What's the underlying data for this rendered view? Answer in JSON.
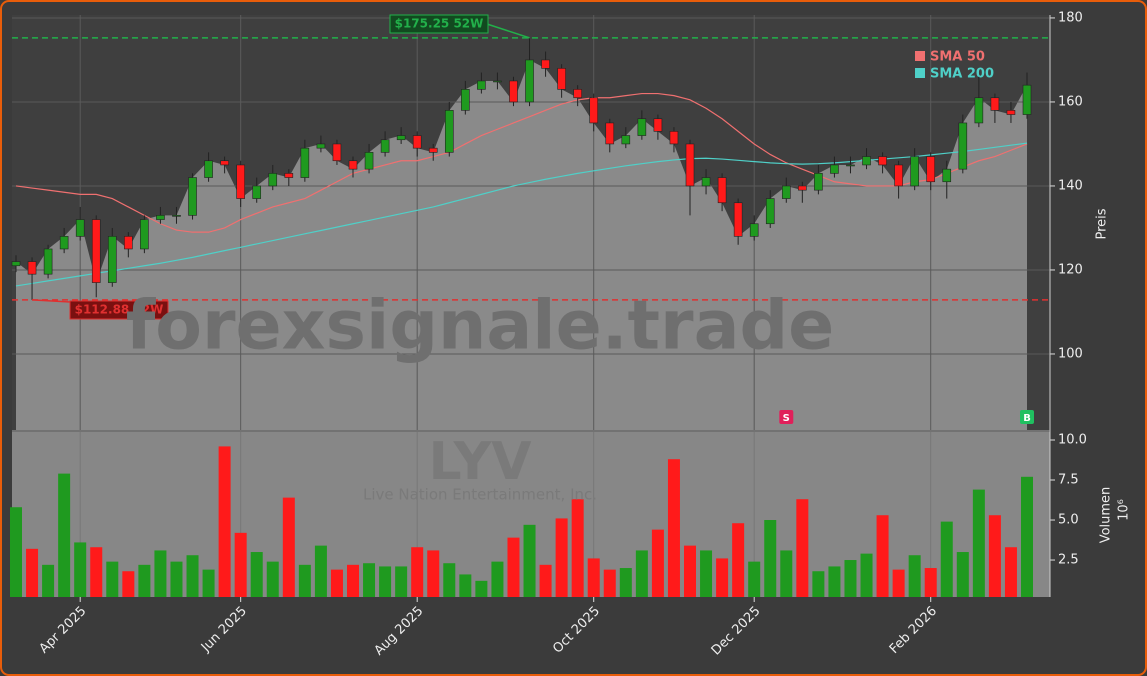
{
  "chart_data": {
    "type": "candlestick",
    "watermark": "forexsignale.trade",
    "symbol": "LYV",
    "company": "Live Nation Entertainment, Inc.",
    "categories": [
      null,
      null,
      null,
      null,
      "Apr 2025",
      null,
      null,
      null,
      null,
      null,
      null,
      null,
      null,
      null,
      "Jun 2025",
      null,
      null,
      null,
      null,
      null,
      null,
      null,
      null,
      null,
      null,
      "Aug 2025",
      null,
      null,
      null,
      null,
      null,
      null,
      null,
      null,
      null,
      null,
      "Oct 2025",
      null,
      null,
      null,
      null,
      null,
      null,
      null,
      null,
      null,
      "Dec 2025",
      null,
      null,
      null,
      null,
      null,
      null,
      null,
      null,
      null,
      null,
      "Feb 2026",
      null,
      null,
      null,
      null,
      null,
      null
    ],
    "open": [
      121,
      122,
      119,
      125,
      128,
      132,
      117,
      128,
      125,
      132,
      133,
      133,
      142,
      146,
      145,
      137,
      140,
      143,
      142,
      149,
      150,
      146,
      144,
      148,
      151,
      152,
      149,
      148,
      158,
      163,
      165,
      165,
      160,
      170,
      168,
      163,
      161,
      155,
      150,
      152,
      156,
      153,
      150,
      140,
      142,
      136,
      128,
      131,
      137,
      140,
      139,
      143,
      145,
      145,
      147,
      145,
      140,
      147,
      141,
      144,
      155,
      161,
      158,
      157
    ],
    "high": [
      123.5,
      123,
      126,
      130,
      135,
      133,
      130,
      129,
      133,
      135,
      135,
      143,
      148,
      147,
      146,
      142,
      145,
      144,
      151,
      152,
      151,
      147,
      150,
      153,
      154,
      153,
      150,
      160,
      165,
      167,
      167,
      166,
      175.25,
      172,
      169,
      164,
      162,
      156,
      154,
      158,
      157,
      154,
      151,
      144,
      143,
      137,
      133,
      139,
      142,
      141,
      145,
      147,
      147,
      149,
      148,
      146,
      149,
      148,
      146,
      157,
      166,
      162,
      160,
      167
    ],
    "low": [
      119.5,
      112.88,
      118,
      124,
      127,
      113.5,
      116,
      123,
      124,
      131,
      131,
      132,
      141,
      143,
      135,
      136,
      139,
      140,
      141,
      148,
      145,
      142,
      143,
      147,
      150,
      147,
      146,
      147,
      157,
      162,
      163,
      159,
      159,
      166,
      161,
      159,
      153,
      148,
      149,
      151,
      151,
      148,
      133,
      138,
      134,
      126,
      127,
      130,
      136,
      136,
      138,
      142,
      143,
      144,
      143,
      137,
      139,
      139,
      137,
      143,
      154,
      155,
      155,
      156
    ],
    "close": [
      122,
      119,
      125,
      128,
      132,
      117,
      128,
      125,
      132,
      133,
      133,
      142,
      146,
      145,
      137,
      140,
      143,
      142,
      149,
      150,
      146,
      144,
      148,
      151,
      152,
      149,
      148,
      158,
      163,
      165,
      165,
      160,
      170,
      168,
      163,
      161,
      155,
      150,
      152,
      156,
      153,
      150,
      140,
      142,
      136,
      128,
      131,
      137,
      140,
      139,
      143,
      145,
      145,
      147,
      145,
      140,
      147,
      141,
      144,
      155,
      161,
      158,
      157,
      164
    ],
    "up_color": "#1f9a1f",
    "down_color": "#ff1a1a",
    "series": [
      {
        "name": "SMA 50",
        "color": "#f07070",
        "values": [
          140,
          139.5,
          139,
          138.5,
          138,
          138,
          137,
          135,
          133,
          131,
          129.5,
          129,
          129,
          130,
          132,
          133.5,
          135,
          136,
          137,
          139,
          141,
          143,
          144,
          145,
          146,
          146,
          147,
          148,
          150,
          152,
          153.5,
          155,
          156.5,
          158,
          159.5,
          160.5,
          161,
          161,
          161.5,
          162,
          162,
          161.5,
          160.5,
          158.5,
          156,
          153,
          150,
          147.5,
          145.5,
          144,
          142.5,
          141,
          140.5,
          140,
          140,
          140,
          141,
          141.5,
          143,
          144.5,
          146,
          147,
          148.5,
          150
        ]
      },
      {
        "name": "SMA 200",
        "color": "#4fd0c8",
        "values": [
          116.2,
          116.8,
          117.4,
          118,
          118.6,
          119.2,
          119.8,
          120.4,
          121,
          121.6,
          122.3,
          123,
          123.8,
          124.6,
          125.4,
          126.2,
          127,
          127.8,
          128.6,
          129.4,
          130.2,
          131,
          131.8,
          132.6,
          133.4,
          134.2,
          135,
          136,
          137,
          138,
          139,
          140,
          140.8,
          141.6,
          142.3,
          143,
          143.6,
          144.2,
          144.8,
          145.3,
          145.8,
          146.2,
          146.5,
          146.6,
          146.4,
          146.1,
          145.8,
          145.5,
          145.3,
          145.2,
          145.3,
          145.5,
          145.8,
          146.1,
          146.4,
          146.7,
          147,
          147.4,
          147.8,
          148.2,
          148.7,
          149.2,
          149.7,
          150.2
        ]
      }
    ],
    "hlines": [
      {
        "value": 175.25,
        "label": "$175.25 52W",
        "color": "#22b04a"
      },
      {
        "value": 112.88,
        "label": "$112.88 52W",
        "color": "#e03030"
      }
    ],
    "signals": [
      {
        "label": "S",
        "x": 48,
        "color": "#e0205a"
      },
      {
        "label": "B",
        "x": 63,
        "color": "#20c060"
      }
    ],
    "ylabel": "Preis",
    "ylim": [
      81.9,
      180.7
    ],
    "yticks": [
      100,
      120,
      140,
      160,
      180
    ],
    "grid": true,
    "volume": {
      "ylabel": "Volumen",
      "scale_label": "10⁶",
      "values": [
        5.8,
        3.2,
        2.2,
        7.9,
        3.6,
        3.3,
        2.4,
        1.8,
        2.2,
        3.1,
        2.4,
        2.8,
        1.9,
        9.6,
        4.2,
        3.0,
        2.4,
        6.4,
        2.2,
        3.4,
        1.9,
        2.2,
        2.3,
        2.1,
        2.1,
        3.3,
        3.1,
        2.3,
        1.6,
        1.2,
        2.4,
        3.9,
        4.7,
        2.2,
        5.1,
        6.3,
        2.6,
        1.9,
        2.0,
        3.1,
        4.4,
        8.8,
        3.4,
        3.1,
        2.6,
        4.8,
        2.4,
        5.0,
        3.1,
        6.3,
        1.8,
        2.1,
        2.5,
        2.9,
        5.3,
        1.9,
        2.8,
        2.0,
        4.9,
        3.0,
        6.9,
        5.3,
        3.3,
        7.7
      ],
      "ylim": [
        0.19,
        10.5
      ],
      "yticks": [
        2.5,
        {
          "value": 5,
          "label": "5.0"
        },
        7.5,
        {
          "value": 10,
          "label": "10.0"
        }
      ]
    }
  }
}
